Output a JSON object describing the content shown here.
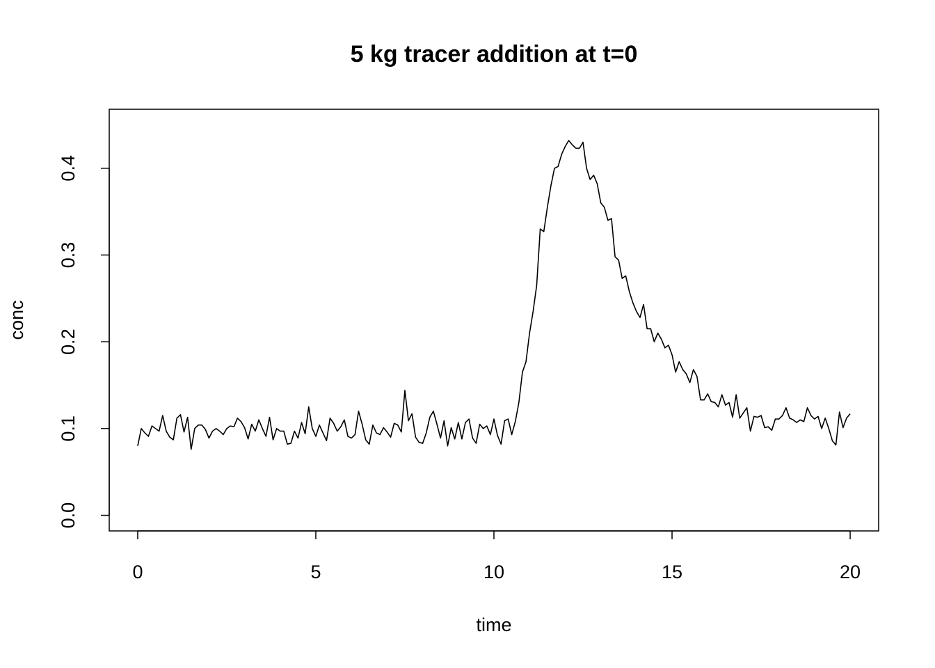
{
  "chart_data": {
    "type": "line",
    "title": "5 kg tracer addition at t=0",
    "x_label": "time",
    "y_label": "conc",
    "color": "#000000",
    "x": [
      0,
      0.1,
      0.2,
      0.3,
      0.4,
      0.5,
      0.6,
      0.7,
      0.8,
      0.9,
      1,
      1.1,
      1.2,
      1.3,
      1.4,
      1.5,
      1.6,
      1.7,
      1.8,
      1.9,
      2,
      2.1,
      2.2,
      2.3,
      2.4,
      2.5,
      2.6,
      2.7,
      2.8,
      2.9,
      3,
      3.1,
      3.2,
      3.3,
      3.4,
      3.5,
      3.6,
      3.7,
      3.8,
      3.9,
      4,
      4.1,
      4.2,
      4.3,
      4.4,
      4.5,
      4.6,
      4.7,
      4.8,
      4.9,
      5,
      5.1,
      5.2,
      5.3,
      5.4,
      5.5,
      5.6,
      5.7,
      5.8,
      5.9,
      6,
      6.1,
      6.2,
      6.3,
      6.4,
      6.5,
      6.6,
      6.7,
      6.8,
      6.9,
      7,
      7.1,
      7.2,
      7.3,
      7.4,
      7.5,
      7.6,
      7.7,
      7.8,
      7.9,
      8,
      8.1,
      8.2,
      8.3,
      8.4,
      8.5,
      8.6,
      8.7,
      8.8,
      8.9,
      9,
      9.1,
      9.2,
      9.3,
      9.4,
      9.5,
      9.6,
      9.7,
      9.8,
      9.9,
      10,
      10.1,
      10.2,
      10.3,
      10.4,
      10.5,
      10.6,
      10.7,
      10.8,
      10.9,
      11,
      11.1,
      11.2,
      11.3,
      11.4,
      11.5,
      11.6,
      11.7,
      11.8,
      11.9,
      12,
      12.1,
      12.2,
      12.3,
      12.4,
      12.5,
      12.6,
      12.7,
      12.8,
      12.9,
      13,
      13.1,
      13.2,
      13.3,
      13.4,
      13.5,
      13.6,
      13.7,
      13.8,
      13.9,
      14,
      14.1,
      14.2,
      14.3,
      14.4,
      14.5,
      14.6,
      14.7,
      14.8,
      14.9,
      15,
      15.1,
      15.2,
      15.3,
      15.4,
      15.5,
      15.6,
      15.7,
      15.8,
      15.9,
      16,
      16.1,
      16.2,
      16.3,
      16.4,
      16.5,
      16.6,
      16.7,
      16.8,
      16.9,
      17,
      17.1,
      17.2,
      17.3,
      17.4,
      17.5,
      17.6,
      17.7,
      17.8,
      17.9,
      18,
      18.1,
      18.2,
      18.3,
      18.4,
      18.5,
      18.6,
      18.7,
      18.8,
      18.9,
      19,
      19.1,
      19.2,
      19.3,
      19.4,
      19.5,
      19.6,
      19.7,
      19.8,
      19.9,
      20
    ],
    "values": [
      0.08,
      0.1,
      0.095,
      0.091,
      0.103,
      0.1,
      0.097,
      0.115,
      0.097,
      0.09,
      0.087,
      0.112,
      0.116,
      0.096,
      0.113,
      0.076,
      0.1,
      0.104,
      0.104,
      0.099,
      0.089,
      0.097,
      0.1,
      0.097,
      0.093,
      0.1,
      0.103,
      0.102,
      0.112,
      0.108,
      0.101,
      0.088,
      0.105,
      0.097,
      0.11,
      0.1,
      0.091,
      0.113,
      0.087,
      0.1,
      0.097,
      0.097,
      0.082,
      0.083,
      0.097,
      0.089,
      0.107,
      0.094,
      0.125,
      0.1,
      0.091,
      0.104,
      0.095,
      0.086,
      0.112,
      0.106,
      0.097,
      0.102,
      0.11,
      0.091,
      0.089,
      0.093,
      0.12,
      0.105,
      0.087,
      0.082,
      0.104,
      0.095,
      0.093,
      0.101,
      0.096,
      0.09,
      0.106,
      0.104,
      0.096,
      0.144,
      0.109,
      0.117,
      0.09,
      0.084,
      0.083,
      0.095,
      0.113,
      0.12,
      0.105,
      0.089,
      0.109,
      0.08,
      0.101,
      0.088,
      0.107,
      0.088,
      0.107,
      0.111,
      0.089,
      0.083,
      0.105,
      0.1,
      0.103,
      0.093,
      0.111,
      0.092,
      0.082,
      0.109,
      0.111,
      0.093,
      0.108,
      0.13,
      0.165,
      0.177,
      0.21,
      0.235,
      0.265,
      0.33,
      0.327,
      0.355,
      0.38,
      0.4,
      0.402,
      0.416,
      0.425,
      0.432,
      0.427,
      0.423,
      0.423,
      0.43,
      0.4,
      0.387,
      0.392,
      0.382,
      0.36,
      0.355,
      0.34,
      0.342,
      0.298,
      0.294,
      0.273,
      0.276,
      0.258,
      0.245,
      0.235,
      0.228,
      0.243,
      0.215,
      0.215,
      0.2,
      0.21,
      0.203,
      0.193,
      0.196,
      0.185,
      0.165,
      0.177,
      0.168,
      0.163,
      0.153,
      0.168,
      0.16,
      0.133,
      0.133,
      0.14,
      0.131,
      0.13,
      0.125,
      0.139,
      0.127,
      0.13,
      0.113,
      0.139,
      0.112,
      0.118,
      0.124,
      0.097,
      0.114,
      0.113,
      0.115,
      0.101,
      0.102,
      0.098,
      0.111,
      0.111,
      0.115,
      0.124,
      0.112,
      0.11,
      0.107,
      0.11,
      0.108,
      0.124,
      0.115,
      0.111,
      0.114,
      0.1,
      0.112,
      0.1,
      0.086,
      0.081,
      0.119,
      0.101,
      0.112,
      0.117
    ],
    "xlim": [
      -0.8,
      20.8
    ],
    "ylim": [
      -0.018,
      0.468
    ],
    "xticks": [
      0,
      5,
      10,
      15,
      20
    ],
    "yticks": [
      {
        "value": 0,
        "label": "0.0"
      },
      0.1,
      0.2,
      0.3,
      0.4
    ]
  }
}
